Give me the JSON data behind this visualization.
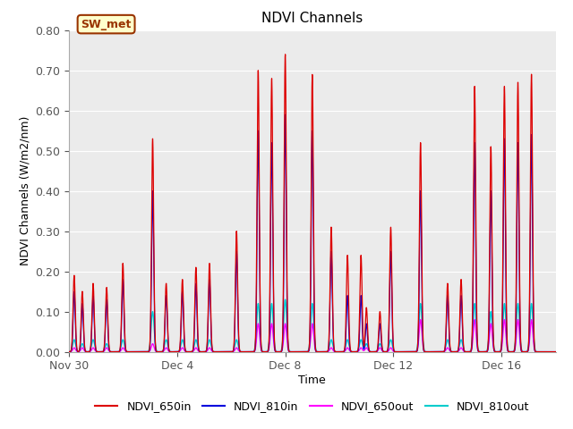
{
  "title": "NDVI Channels",
  "xlabel": "Time",
  "ylabel": "NDVI Channels (W/m2/nm)",
  "ylim": [
    0.0,
    0.8
  ],
  "yticks": [
    0.0,
    0.1,
    0.2,
    0.3,
    0.4,
    0.5,
    0.6,
    0.7,
    0.8
  ],
  "plot_bg": "#ebebeb",
  "fig_bg": "#ffffff",
  "grid_color": "#ffffff",
  "series_colors": {
    "NDVI_650in": "#dd0000",
    "NDVI_810in": "#0000dd",
    "NDVI_650out": "#ff00ff",
    "NDVI_810out": "#00cccc"
  },
  "legend_labels": [
    "NDVI_650in",
    "NDVI_810in",
    "NDVI_650out",
    "NDVI_810out"
  ],
  "annotation_text": "SW_met",
  "annotation_bg": "#ffffcc",
  "annotation_border": "#993300",
  "xtick_labels": [
    "Nov 30",
    "Dec 4",
    "Dec 8",
    "Dec 12",
    "Dec 16"
  ],
  "xtick_positions": [
    0,
    4,
    8,
    12,
    16
  ],
  "xlim": [
    0,
    18
  ],
  "spike_peaks_650in": [
    0.19,
    0.15,
    0.17,
    0.16,
    0.22,
    0.53,
    0.17,
    0.18,
    0.21,
    0.22,
    0.3,
    0.7,
    0.68,
    0.74,
    0.69,
    0.31,
    0.24,
    0.24,
    0.11,
    0.1,
    0.31,
    0.52,
    0.17,
    0.18,
    0.66,
    0.51,
    0.66,
    0.67,
    0.69
  ],
  "spike_days_650in": [
    0.2,
    0.5,
    0.9,
    1.4,
    2.0,
    3.1,
    3.6,
    4.2,
    4.7,
    5.2,
    6.2,
    7.0,
    7.5,
    8.0,
    9.0,
    9.7,
    10.3,
    10.8,
    11.0,
    11.5,
    11.9,
    13.0,
    14.0,
    14.5,
    15.0,
    15.6,
    16.1,
    16.6,
    17.1
  ],
  "spike_peaks_810in": [
    0.15,
    0.12,
    0.14,
    0.13,
    0.18,
    0.4,
    0.14,
    0.15,
    0.17,
    0.18,
    0.25,
    0.55,
    0.52,
    0.59,
    0.55,
    0.25,
    0.14,
    0.14,
    0.07,
    0.07,
    0.25,
    0.4,
    0.14,
    0.14,
    0.52,
    0.4,
    0.53,
    0.52,
    0.54
  ],
  "spike_peaks_650out": [
    0.01,
    0.01,
    0.01,
    0.01,
    0.01,
    0.02,
    0.01,
    0.01,
    0.01,
    0.01,
    0.01,
    0.07,
    0.07,
    0.07,
    0.07,
    0.01,
    0.01,
    0.01,
    0.01,
    0.01,
    0.01,
    0.08,
    0.01,
    0.01,
    0.08,
    0.07,
    0.08,
    0.08,
    0.08
  ],
  "spike_peaks_810out": [
    0.03,
    0.02,
    0.03,
    0.02,
    0.03,
    0.1,
    0.03,
    0.03,
    0.03,
    0.03,
    0.03,
    0.12,
    0.12,
    0.13,
    0.12,
    0.03,
    0.03,
    0.03,
    0.02,
    0.02,
    0.03,
    0.12,
    0.03,
    0.03,
    0.12,
    0.1,
    0.12,
    0.12,
    0.12
  ]
}
